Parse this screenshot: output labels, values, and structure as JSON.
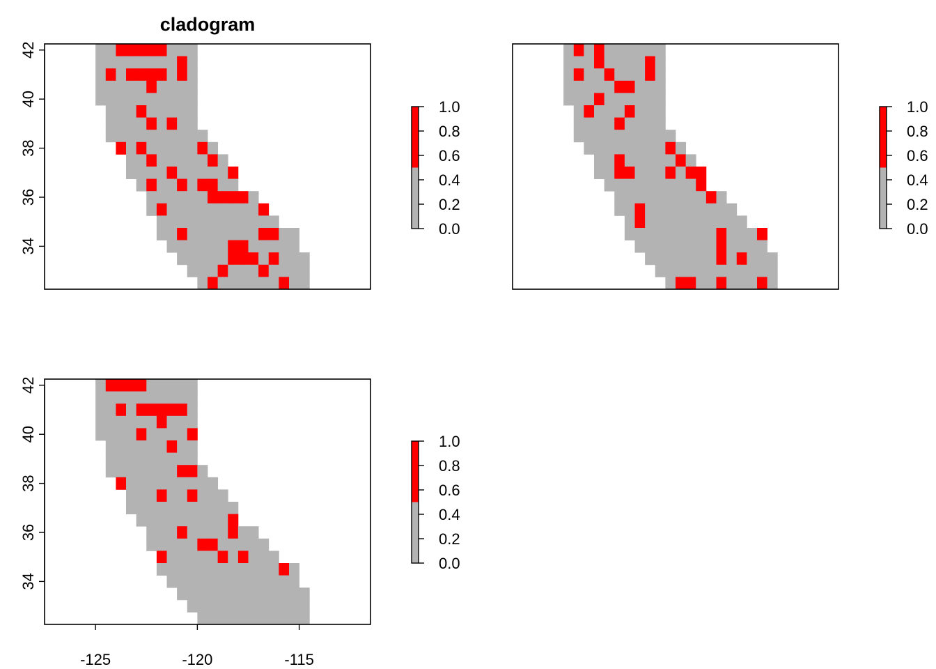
{
  "colors": {
    "no_data": "#ffffff",
    "low": "#b3b3b3",
    "high": "#ff0000",
    "axis": "#000000"
  },
  "panels": [
    {
      "title": "cladogram",
      "legend_ticks": [
        "0.0",
        "0.2",
        "0.4",
        "0.6",
        "0.8",
        "1.0"
      ],
      "y_ticks": [
        "34",
        "36",
        "38",
        "40",
        "42"
      ],
      "x_ticks": [],
      "chart_data": {
        "type": "heatmap",
        "xlim": [
          -127.5,
          -111.5
        ],
        "ylim": [
          32.25,
          42.25
        ],
        "cell_size_deg": 0.5,
        "value_range": [
          0,
          1
        ],
        "color_breaks": [
          {
            "from": 0,
            "to": 0.5,
            "color": "#b3b3b3"
          },
          {
            "from": 0.5,
            "to": 1,
            "color": "#ff0000"
          }
        ],
        "grid": {
          "row_top_lat": 42,
          "col_left_lon": -124.75,
          "rows": [
            "0022222000000000000000",
            "0000000020000000000000",
            "0202222020000000000000",
            "0000020000000000000000",
            "0000000000000000000000",
            "0000200000000000000000",
            "0000020200000000000000",
            "0000000000000000000000",
            "0020200000200000000000",
            "0000020000020000000000",
            "0000000200000220000000",
            "0000020020220020000000",
            "0000000000022220000000",
            "0000002000000000200000",
            "0000000000000000000000",
            "0000000020000000220000",
            "0000000000000220000000",
            "0000000000000222020000",
            "0000000000002000200000",
            "0000000000020000002000",
            "0000000000000002000000"
          ]
        }
      }
    },
    {
      "title": "",
      "legend_ticks": [
        "0.0",
        "0.2",
        "0.4",
        "0.6",
        "0.8",
        "1.0"
      ],
      "y_ticks": [],
      "x_ticks": [],
      "chart_data": {
        "type": "heatmap",
        "xlim": [
          -127.5,
          -111.5
        ],
        "ylim": [
          32.25,
          42.25
        ],
        "cell_size_deg": 0.5,
        "value_range": [
          0,
          1
        ],
        "color_breaks": [
          {
            "from": 0,
            "to": 0.5,
            "color": "#b3b3b3"
          },
          {
            "from": 0.5,
            "to": 1,
            "color": "#ff0000"
          }
        ],
        "grid": {
          "row_top_lat": 42,
          "col_left_lon": -124.75,
          "rows": [
            "0202000000000000000000",
            "0002000020000000000000",
            "0200200020000000000000",
            "0000022000000000000000",
            "0002000000000000000000",
            "0020002000000000000000",
            "0000020000000000000000",
            "0000000000000000000000",
            "0000000000200000000000",
            "0000020000020000000000",
            "0000022000202200000000",
            "0000000000000220000000",
            "0000000000000020000000",
            "0000000200000000020000",
            "0000000200000000000000",
            "0000000000000002000200",
            "0000000000000002000000",
            "0000000000000002020000",
            "0000000000000000000000",
            "0000000000022002000200",
            "0000000000000020000000"
          ]
        }
      }
    },
    {
      "title": "",
      "legend_ticks": [
        "0.0",
        "0.2",
        "0.4",
        "0.6",
        "0.8",
        "1.0"
      ],
      "y_ticks": [
        "34",
        "36",
        "38",
        "40",
        "42"
      ],
      "x_ticks": [
        "-125",
        "-120",
        "-115"
      ],
      "chart_data": {
        "type": "heatmap",
        "xlim": [
          -127.5,
          -111.5
        ],
        "ylim": [
          32.25,
          42.25
        ],
        "cell_size_deg": 0.5,
        "value_range": [
          0,
          1
        ],
        "color_breaks": [
          {
            "from": 0,
            "to": 0.5,
            "color": "#b3b3b3"
          },
          {
            "from": 0.5,
            "to": 1,
            "color": "#ff0000"
          }
        ],
        "grid": {
          "row_top_lat": 42,
          "col_left_lon": -124.75,
          "rows": [
            "0222200000000000000000",
            "0000000000000000000000",
            "0020222220000000000000",
            "0000002000000000000000",
            "0000200002000000000000",
            "0000000200000000000000",
            "0000000000000000000000",
            "0000000022000000000000",
            "0020000000000000000000",
            "0000002002000000000000",
            "0000000000000000000000",
            "0000000000000200000000",
            "0000000020000200000000",
            "0000000000220000000000",
            "0000002000002020000000",
            "0000000000000000002000",
            "0000000000000000000000",
            "0000000000000000000000",
            "0000000000000000000000",
            "0000000000000000000000",
            "0000000000000000000000"
          ]
        }
      }
    }
  ]
}
